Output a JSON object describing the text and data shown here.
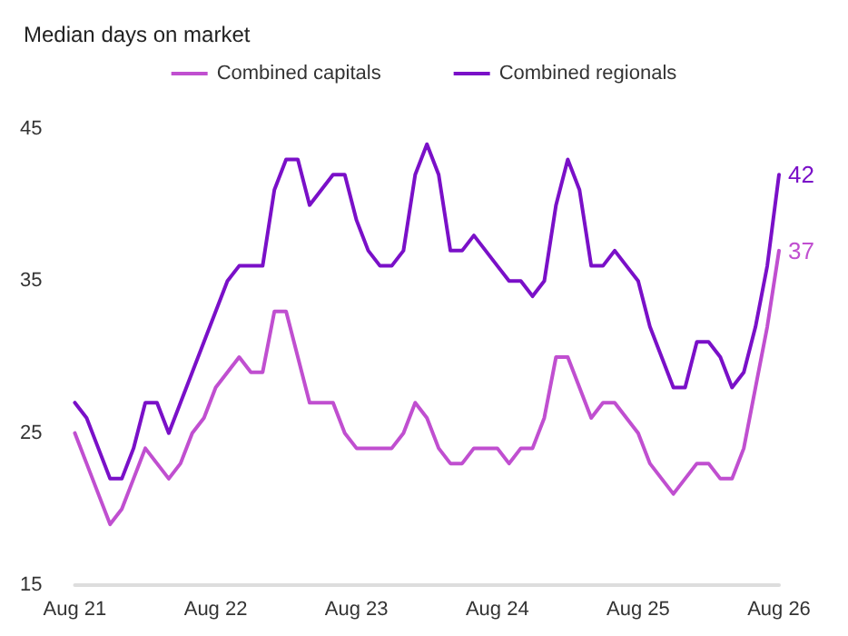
{
  "chart_data": {
    "type": "line",
    "title": "Median days on market",
    "categories": [
      "Aug 21",
      null,
      null,
      null,
      null,
      null,
      null,
      null,
      null,
      null,
      null,
      null,
      "Aug 22",
      null,
      null,
      null,
      null,
      null,
      null,
      null,
      null,
      null,
      null,
      null,
      "Aug 23",
      null,
      null,
      null,
      null,
      null,
      null,
      null,
      null,
      null,
      null,
      null,
      "Aug 24",
      null,
      null,
      null,
      null,
      null,
      null,
      null,
      null,
      null,
      null,
      null,
      "Aug 25",
      null,
      null,
      null,
      null,
      null,
      null,
      null,
      null,
      null,
      null,
      null,
      "Aug 26"
    ],
    "series": [
      {
        "name": "Combined capitals",
        "color": "#c04fd0",
        "values": [
          25,
          23,
          21,
          19,
          20,
          22,
          24,
          23,
          22,
          23,
          25,
          26,
          28,
          29,
          30,
          29,
          29,
          33,
          33,
          30,
          27,
          27,
          27,
          25,
          24,
          24,
          24,
          24,
          25,
          27,
          26,
          24,
          23,
          23,
          24,
          24,
          24,
          23,
          24,
          24,
          26,
          30,
          30,
          28,
          26,
          27,
          27,
          26,
          25,
          23,
          22,
          21,
          22,
          23,
          23,
          22,
          22,
          24,
          28,
          32,
          37
        ],
        "value_labels": [
          null,
          null,
          null,
          null,
          null,
          null,
          null,
          null,
          null,
          null,
          null,
          null,
          null,
          null,
          null,
          null,
          null,
          null,
          null,
          null,
          null,
          null,
          null,
          null,
          null,
          null,
          null,
          null,
          null,
          null,
          null,
          null,
          null,
          null,
          null,
          null,
          null,
          null,
          null,
          null,
          null,
          null,
          null,
          null,
          null,
          null,
          null,
          null,
          null,
          null,
          null,
          null,
          null,
          null,
          null,
          null,
          null,
          null,
          null,
          null,
          "37"
        ]
      },
      {
        "name": "Combined regionals",
        "color": "#7a10c8",
        "values": [
          27,
          26,
          24,
          22,
          22,
          24,
          27,
          27,
          25,
          27,
          29,
          31,
          33,
          35,
          36,
          36,
          36,
          41,
          43,
          43,
          40,
          41,
          42,
          42,
          39,
          37,
          36,
          36,
          37,
          42,
          44,
          42,
          37,
          37,
          38,
          37,
          36,
          35,
          35,
          34,
          35,
          40,
          43,
          41,
          36,
          36,
          37,
          36,
          35,
          32,
          30,
          28,
          28,
          31,
          31,
          30,
          28,
          29,
          32,
          36,
          42
        ],
        "value_labels": [
          null,
          null,
          null,
          null,
          null,
          null,
          null,
          null,
          null,
          null,
          null,
          null,
          null,
          null,
          null,
          null,
          null,
          null,
          null,
          null,
          null,
          null,
          null,
          null,
          null,
          null,
          null,
          null,
          null,
          null,
          null,
          null,
          null,
          null,
          null,
          null,
          null,
          null,
          null,
          null,
          null,
          null,
          null,
          null,
          null,
          null,
          null,
          null,
          null,
          null,
          null,
          null,
          null,
          null,
          null,
          null,
          null,
          null,
          null,
          null,
          "42"
        ]
      }
    ],
    "ylim": [
      15,
      45
    ],
    "yticks": [
      15,
      25,
      35,
      45
    ],
    "grid": false,
    "legend": "top",
    "marker": "none",
    "line_style": "solid"
  }
}
